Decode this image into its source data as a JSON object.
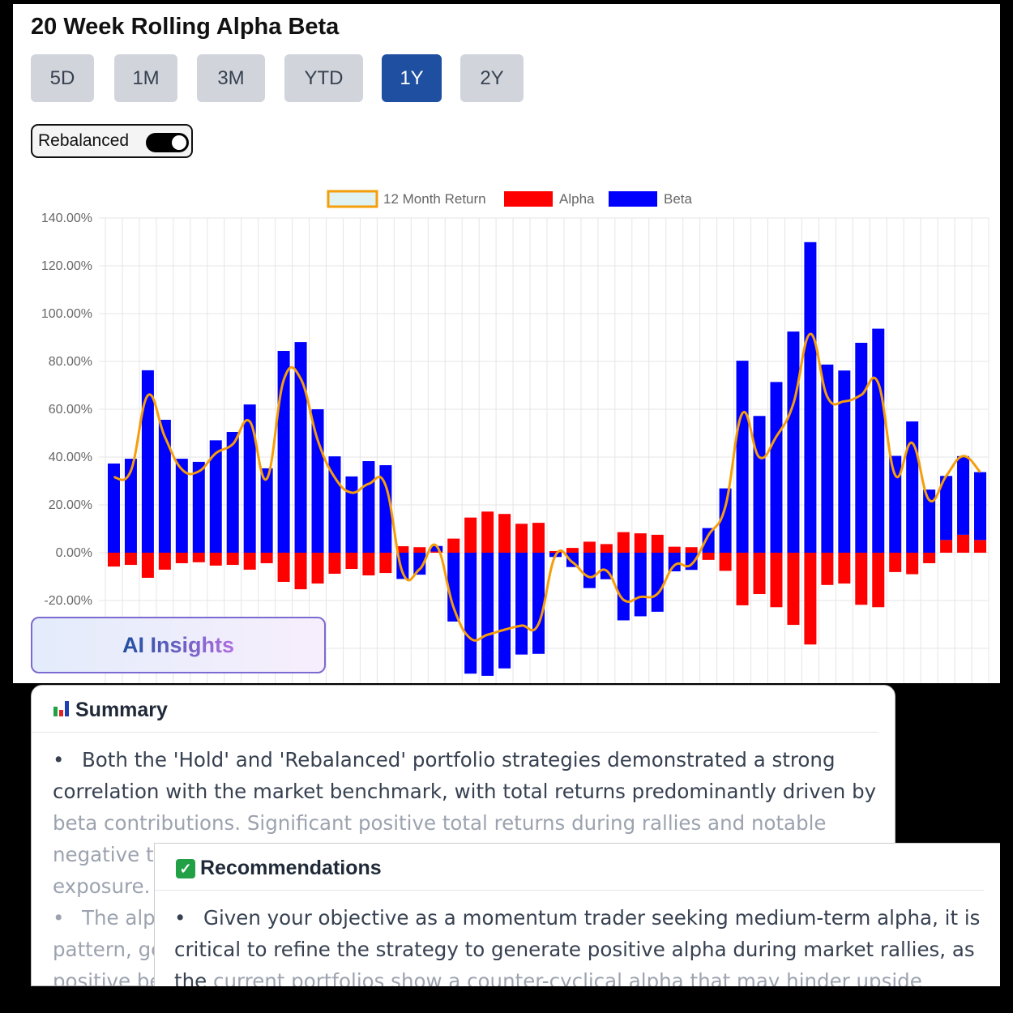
{
  "header": {
    "title": "20 Week Rolling Alpha Beta"
  },
  "ranges": [
    {
      "label": "5D",
      "active": false
    },
    {
      "label": "1M",
      "active": false
    },
    {
      "label": "3M",
      "active": false
    },
    {
      "label": "YTD",
      "active": false
    },
    {
      "label": "1Y",
      "active": true
    },
    {
      "label": "2Y",
      "active": false
    }
  ],
  "toggle": {
    "label": "Rebalanced",
    "on": true
  },
  "ai_button": {
    "label": "AI Insights"
  },
  "summary": {
    "icon": "bar-chart-icon",
    "title": "Summary",
    "bullets": [
      {
        "text_dark": "Both the 'Hold' and 'Rebalanced' portfolio strategies demonstrated a strong correlation with the market benchmark, with total returns predominantly driven by",
        "text_faded": "beta contributions. Significant positive total returns during rallies and notable negative t",
        "text_faded2": "exposure."
      },
      {
        "text_faded": "The alp"
      },
      {
        "text_faded": "pattern, ge"
      },
      {
        "text_faded": "positive be"
      }
    ]
  },
  "recommendations": {
    "icon": "check-icon",
    "title": "Recommendations",
    "bullets": [
      {
        "text_dark": "Given your objective as a momentum trader seeking medium-term alpha, it is critical to refine the strategy to generate positive alpha during market rallies, as the",
        "text_faded": "current portfolios show a counter-cyclical alpha that may hinder upside capture."
      }
    ]
  },
  "chart_data": {
    "type": "bar",
    "stacked": true,
    "legend_position": "top",
    "grid": true,
    "ylim": [
      -60,
      140
    ],
    "y_tick_labels": [
      "140.00%",
      "120.00%",
      "100.00%",
      "80.00%",
      "60.00%",
      "40.00%",
      "20.00%",
      "0.00%",
      "-20.00%"
    ],
    "y_ticks": [
      140,
      120,
      100,
      80,
      60,
      40,
      20,
      0,
      -20
    ],
    "series": [
      {
        "name": "12 Month Return",
        "type": "line",
        "color": "#f59e0b",
        "fill": "#e0f2f1",
        "values": [
          31.5,
          34.2,
          65.8,
          48.5,
          34.9,
          34,
          41.6,
          45.4,
          54.9,
          30.9,
          72.2,
          72.8,
          47.1,
          31.5,
          25.1,
          28.8,
          28.1,
          -8.3,
          -6.9,
          2.8,
          -22.9,
          -35.9,
          -34.3,
          -32.2,
          -30.5,
          -29.8,
          -1.1,
          -4,
          -10.2,
          -7.5,
          -19.7,
          -18.5,
          -17.2,
          -5.3,
          -4.9,
          7.3,
          19.3,
          58.3,
          39.9,
          48.6,
          62.3,
          91.5,
          65.2,
          63.3,
          66,
          70.9,
          32.4,
          45.9,
          22,
          32.1,
          40.4,
          33.7
        ]
      },
      {
        "name": "Alpha",
        "type": "bar",
        "color": "#ff0000",
        "values": [
          -5.8,
          -5.1,
          -10.5,
          -7.1,
          -4.4,
          -4,
          -5.4,
          -5.1,
          -7.1,
          -4.4,
          -12.2,
          -15.3,
          -12.9,
          -8.8,
          -6.8,
          -9.5,
          -8.5,
          2.7,
          2.3,
          0.5,
          5.9,
          14.7,
          17.2,
          16.2,
          12.1,
          12.5,
          0.7,
          2,
          4.6,
          3.6,
          8.6,
          8.1,
          7.5,
          2.5,
          2.3,
          -3,
          -7.6,
          -22,
          -17.3,
          -22.8,
          -30.2,
          -38.4,
          -13.5,
          -12.9,
          -21.8,
          -22.8,
          -8.1,
          -9,
          -4.4,
          5.3,
          7.5,
          5.3
        ]
      },
      {
        "name": "Beta",
        "type": "bar",
        "color": "#0000ff",
        "values": [
          37.3,
          39.3,
          76.3,
          55.6,
          39.3,
          38,
          47,
          50.5,
          62,
          35.3,
          84.4,
          88.1,
          60,
          40.3,
          31.9,
          38.3,
          36.6,
          -11,
          -9.2,
          2.3,
          -28.8,
          -50.6,
          -51.5,
          -48.4,
          -42.6,
          -42.3,
          -1.8,
          -6,
          -14.8,
          -11.1,
          -28.3,
          -26.6,
          -24.7,
          -7.8,
          -7.2,
          10.3,
          26.9,
          80.3,
          57.2,
          71.4,
          92.5,
          129.9,
          78.7,
          76.2,
          87.8,
          93.7,
          40.5,
          54.9,
          26.4,
          26.8,
          32.9,
          28.4
        ]
      }
    ]
  }
}
